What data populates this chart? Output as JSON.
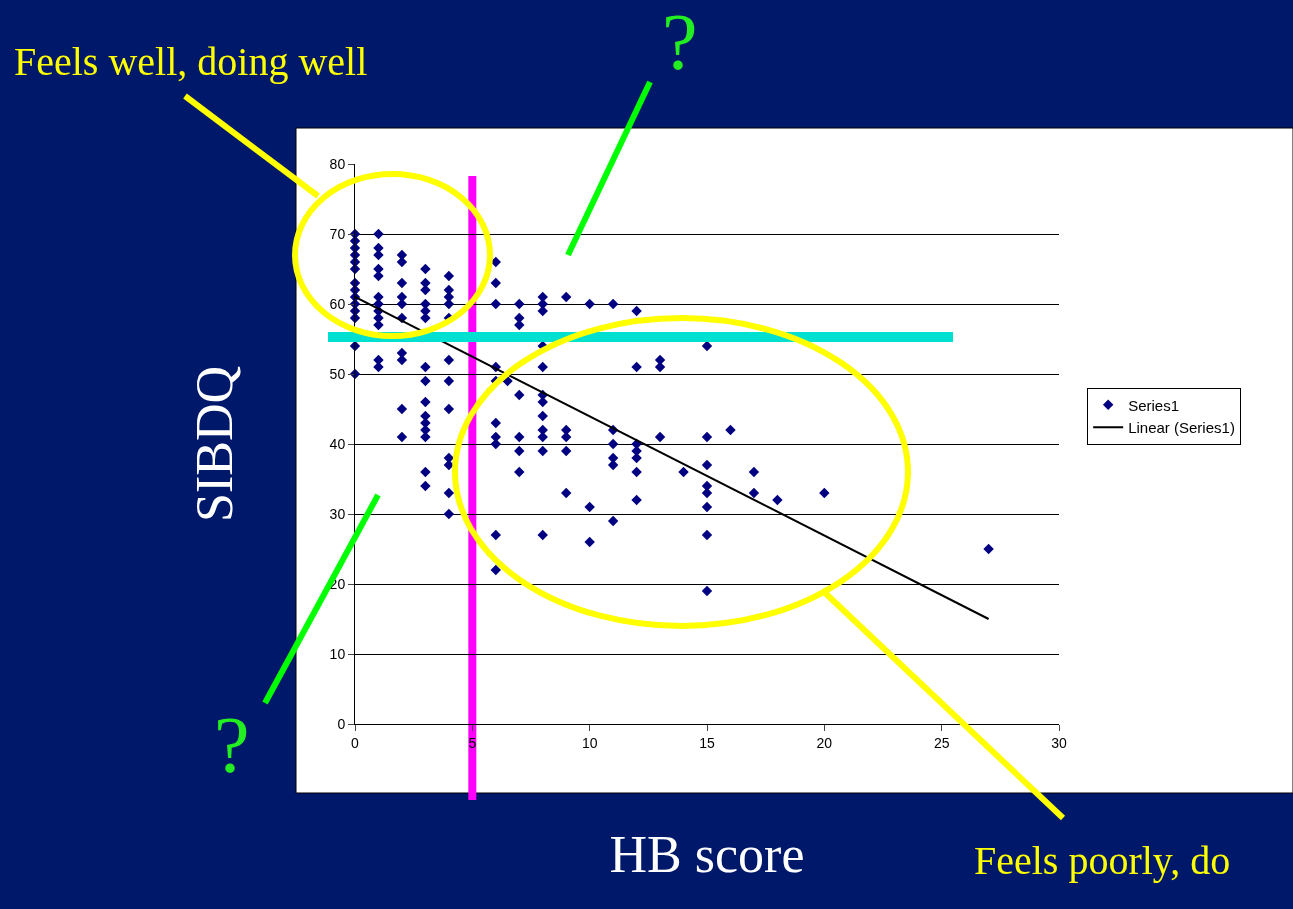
{
  "chart_data": {
    "type": "scatter",
    "xlabel": "HB score",
    "ylabel": "SIBDQ",
    "xlim": [
      0,
      30
    ],
    "xticks": [
      0,
      5,
      10,
      15,
      20,
      25,
      30
    ],
    "ylim": [
      0,
      80
    ],
    "yticks": [
      0,
      10,
      20,
      30,
      40,
      50,
      60,
      70,
      80
    ],
    "grid": "y",
    "legend": "right",
    "marker": "diamond",
    "series": [
      {
        "name": "Series1",
        "color": "#000080",
        "x": [
          0,
          0,
          0,
          0,
          0,
          0,
          0,
          0,
          0,
          0,
          0,
          0,
          0,
          0,
          1,
          1,
          1,
          1,
          1,
          1,
          1,
          1,
          1,
          1,
          1,
          1,
          2,
          2,
          2,
          2,
          2,
          2,
          2,
          2,
          2,
          2,
          3,
          3,
          3,
          3,
          3,
          3,
          3,
          3,
          3,
          3,
          3,
          3,
          3,
          3,
          3,
          4,
          4,
          4,
          4,
          4,
          4,
          4,
          4,
          4,
          4,
          4,
          4,
          6,
          6,
          6,
          6,
          6,
          6,
          6,
          6,
          6,
          6,
          6.5,
          7,
          7,
          7,
          7,
          7,
          7,
          7,
          8,
          8,
          8,
          8,
          8,
          8,
          8,
          8,
          8,
          8,
          8,
          8,
          9,
          9,
          9,
          9,
          9,
          10,
          10,
          10,
          11,
          11,
          11,
          11,
          11,
          11,
          12,
          12,
          12,
          12,
          12,
          12,
          12,
          13,
          13,
          13,
          14,
          15,
          15,
          15,
          15,
          15,
          15,
          15,
          15,
          16,
          17,
          17,
          18,
          20,
          27
        ],
        "values": [
          70,
          69,
          68,
          67,
          66,
          65,
          63,
          62,
          61,
          60,
          59,
          58,
          54,
          50,
          70,
          68,
          67,
          65,
          64,
          61,
          60,
          59,
          58,
          57,
          52,
          51,
          67,
          66,
          63,
          61,
          60,
          58,
          53,
          52,
          45,
          41,
          65,
          63,
          62,
          60,
          59,
          58,
          51,
          49,
          46,
          44,
          43,
          42,
          41,
          36,
          34,
          64,
          62,
          61,
          60,
          58,
          52,
          49,
          45,
          38,
          37,
          33,
          30,
          66,
          63,
          60,
          51,
          49,
          43,
          41,
          40,
          27,
          22,
          49,
          60,
          58,
          57,
          47,
          41,
          39,
          36,
          61,
          60,
          59,
          54,
          51,
          47,
          46,
          44,
          42,
          41,
          39,
          27,
          61,
          42,
          41,
          39,
          33,
          60,
          31,
          26,
          60,
          42,
          40,
          38,
          37,
          29,
          59,
          51,
          40,
          39,
          38,
          36,
          32,
          52,
          51,
          41,
          36,
          54,
          41,
          37,
          34,
          33,
          31,
          27,
          19,
          42,
          36,
          33,
          32,
          33,
          25
        ]
      },
      {
        "name": "Linear (Series1)",
        "type": "line",
        "marker": "none",
        "color": "#000000",
        "x": [
          0,
          27
        ],
        "values": [
          61,
          15
        ]
      }
    ],
    "ref_lines": [
      {
        "axis": "y",
        "value": 55.3,
        "color": "#00e0d0"
      },
      {
        "axis": "x",
        "value": 5,
        "color": "#ff00ff"
      }
    ],
    "annotations": [
      "Feels well, doing well",
      "?",
      "?",
      "Feels poorly, do"
    ]
  }
}
